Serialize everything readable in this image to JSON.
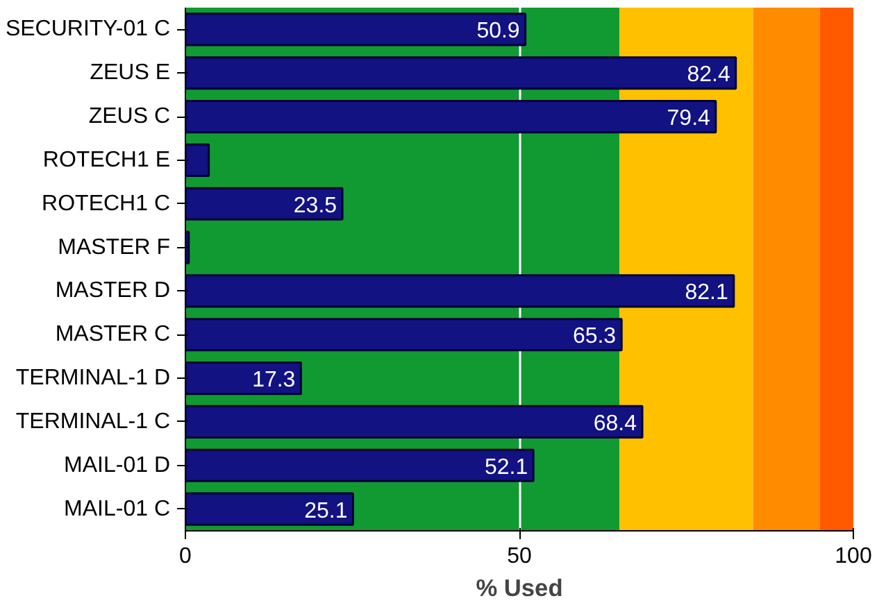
{
  "chart_data": {
    "type": "bar",
    "orientation": "horizontal",
    "xlabel": "% Used",
    "categories": [
      "SECURITY-01 C",
      "ZEUS E",
      "ZEUS C",
      "ROTECH1 E",
      "ROTECH1 C",
      "MASTER F",
      "MASTER D",
      "MASTER C",
      "TERMINAL-1 D",
      "TERMINAL-1 C",
      "MAIL-01 D",
      "MAIL-01 C"
    ],
    "values": [
      50.9,
      82.4,
      79.4,
      3.5,
      23.5,
      0.5,
      82.1,
      65.3,
      17.3,
      68.4,
      52.1,
      25.1
    ],
    "value_labels": [
      "50.9",
      "82.4",
      "79.4",
      null,
      "23.5",
      null,
      "82.1",
      "65.3",
      "17.3",
      "68.4",
      "52.1",
      "25.1"
    ],
    "color": "#121283",
    "xlim": [
      0,
      100
    ],
    "xticks": [
      0,
      50,
      100
    ],
    "grid": "x",
    "bands": [
      {
        "axis": "x",
        "from": 0,
        "to": 65,
        "color": "#129a32"
      },
      {
        "axis": "x",
        "from": 65,
        "to": 85,
        "color": "#ffc000"
      },
      {
        "axis": "x",
        "from": 85,
        "to": 95,
        "color": "#ff8c00"
      },
      {
        "axis": "x",
        "from": 95,
        "to": 100,
        "color": "#ff5a00"
      }
    ]
  }
}
